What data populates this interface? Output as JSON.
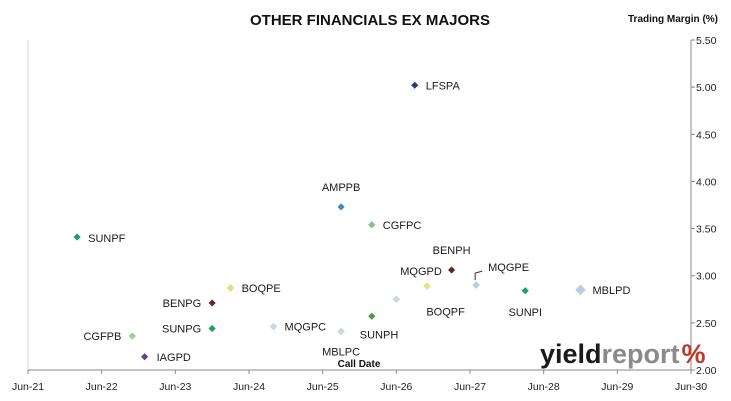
{
  "chart_data": {
    "type": "scatter",
    "title": "OTHER FINANCIALS EX MAJORS",
    "xlabel": "Call Date",
    "ylabel": "Trading Margin (%)",
    "x_ticks": [
      "Jun-21",
      "Jun-22",
      "Jun-23",
      "Jun-24",
      "Jun-25",
      "Jun-26",
      "Jun-27",
      "Jun-28",
      "Jun-29",
      "Jun-30"
    ],
    "xlim": [
      "Jun-21",
      "Jun-30"
    ],
    "y_ticks": [
      "2.00",
      "2.50",
      "3.00",
      "3.50",
      "4.00",
      "4.50",
      "5.00",
      "5.50"
    ],
    "ylim": [
      2.0,
      5.5
    ],
    "y_axis_side": "right",
    "grid": false,
    "points": [
      {
        "label": "LFSPA",
        "x": "2026-09",
        "y": 5.02,
        "color": "#1f3f7a"
      },
      {
        "label": "AMPPB",
        "x": "2025-09",
        "y": 3.73,
        "color": "#4a86cf"
      },
      {
        "label": "CGFPC",
        "x": "2026-02",
        "y": 3.54,
        "color": "#8fbf8f"
      },
      {
        "label": "SUNPF",
        "x": "2022-02",
        "y": 3.41,
        "color": "#1aa260"
      },
      {
        "label": "BENPH",
        "x": "2027-03",
        "y": 3.06,
        "color": "#5a2e1e"
      },
      {
        "label": "MQGPE",
        "x": "2027-07",
        "y": 2.9,
        "color": "#b8cce4"
      },
      {
        "label": "MQGPD",
        "x": "2026-11",
        "y": 2.89,
        "color": "#f0e37a"
      },
      {
        "label": "BOQPE",
        "x": "2024-03",
        "y": 2.87,
        "color": "#e8e07a"
      },
      {
        "label": "MBLPD",
        "x": "2028-12",
        "y": 2.85,
        "color": "#b8cce4"
      },
      {
        "label": "SUNPI",
        "x": "2028-03",
        "y": 2.84,
        "color": "#1aa260"
      },
      {
        "label": "BOQPF",
        "x": "2026-06",
        "y": 2.75,
        "color": "#c6d9f1"
      },
      {
        "label": "BENPG",
        "x": "2023-12",
        "y": 2.71,
        "color": "#6b2a2a"
      },
      {
        "label": "SUNPH",
        "x": "2026-02",
        "y": 2.57,
        "color": "#4f9a3e"
      },
      {
        "label": "MQGPC",
        "x": "2024-10",
        "y": 2.46,
        "color": "#c6d9f1"
      },
      {
        "label": "SUNPG",
        "x": "2023-12",
        "y": 2.44,
        "color": "#1aa260"
      },
      {
        "label": "MBLPC",
        "x": "2025-09",
        "y": 2.41,
        "color": "#c6d9f1"
      },
      {
        "label": "CGFPB",
        "x": "2022-11",
        "y": 2.36,
        "color": "#9ccf8f"
      },
      {
        "label": "IAGPD",
        "x": "2023-01",
        "y": 2.14,
        "color": "#6a3a9a"
      }
    ]
  },
  "logo": {
    "text_1": "yield",
    "text_2": "report",
    "text_3": "%",
    "colors": {
      "dark": "#1a1a1a",
      "grey": "#8a8a8a",
      "red": "#c0392b",
      "green": "#2e7d32"
    }
  }
}
